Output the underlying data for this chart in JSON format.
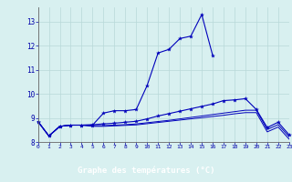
{
  "title": "Graphe des températures (°C)",
  "bg_color": "#cceaea",
  "plot_bg": "#d8f0f0",
  "grid_color": "#b8d8d8",
  "line_color": "#0000bb",
  "bar_color": "#0000aa",
  "text_color": "#0000aa",
  "xlim": [
    0,
    23
  ],
  "ylim": [
    8.0,
    13.6
  ],
  "yticks": [
    8,
    9,
    10,
    11,
    12,
    13
  ],
  "xticks": [
    0,
    1,
    2,
    3,
    4,
    5,
    6,
    7,
    8,
    9,
    10,
    11,
    12,
    13,
    14,
    15,
    16,
    17,
    18,
    19,
    20,
    21,
    22,
    23
  ],
  "s1_x": [
    0,
    1,
    2,
    3,
    4,
    5,
    6,
    7,
    8,
    9,
    10,
    11,
    12,
    13,
    14,
    15,
    16
  ],
  "s1_y": [
    8.85,
    8.25,
    8.65,
    8.7,
    8.7,
    8.7,
    9.2,
    9.3,
    9.3,
    9.35,
    10.35,
    11.7,
    11.85,
    12.3,
    12.4,
    13.3,
    11.6
  ],
  "s2_x": [
    0,
    1,
    2,
    3,
    4,
    5,
    6,
    7,
    8,
    9,
    10,
    11,
    12,
    13,
    14,
    15,
    16,
    17,
    18,
    19,
    20,
    21,
    22,
    23
  ],
  "s2_y": [
    8.85,
    8.25,
    8.65,
    8.7,
    8.7,
    8.72,
    8.75,
    8.78,
    8.82,
    8.86,
    8.96,
    9.08,
    9.18,
    9.28,
    9.38,
    9.48,
    9.58,
    9.72,
    9.75,
    9.8,
    9.35,
    8.6,
    8.82,
    8.3
  ],
  "s3_x": [
    0,
    1,
    2,
    3,
    4,
    5,
    6,
    7,
    8,
    9,
    10,
    11,
    12,
    13,
    14,
    15,
    16,
    17,
    18,
    19,
    20,
    21,
    22,
    23
  ],
  "s3_y": [
    8.85,
    8.25,
    8.65,
    8.7,
    8.7,
    8.68,
    8.68,
    8.7,
    8.72,
    8.75,
    8.8,
    8.85,
    8.9,
    8.96,
    9.02,
    9.08,
    9.14,
    9.2,
    9.26,
    9.32,
    9.32,
    8.52,
    8.72,
    8.22
  ],
  "s4_x": [
    0,
    1,
    2,
    3,
    4,
    5,
    6,
    7,
    8,
    9,
    10,
    11,
    12,
    13,
    14,
    15,
    16,
    17,
    18,
    19,
    20,
    21,
    22,
    23
  ],
  "s4_y": [
    8.85,
    8.25,
    8.65,
    8.7,
    8.7,
    8.65,
    8.65,
    8.67,
    8.69,
    8.71,
    8.76,
    8.81,
    8.86,
    8.91,
    8.96,
    9.01,
    9.06,
    9.11,
    9.17,
    9.22,
    9.22,
    8.42,
    8.62,
    8.12
  ]
}
